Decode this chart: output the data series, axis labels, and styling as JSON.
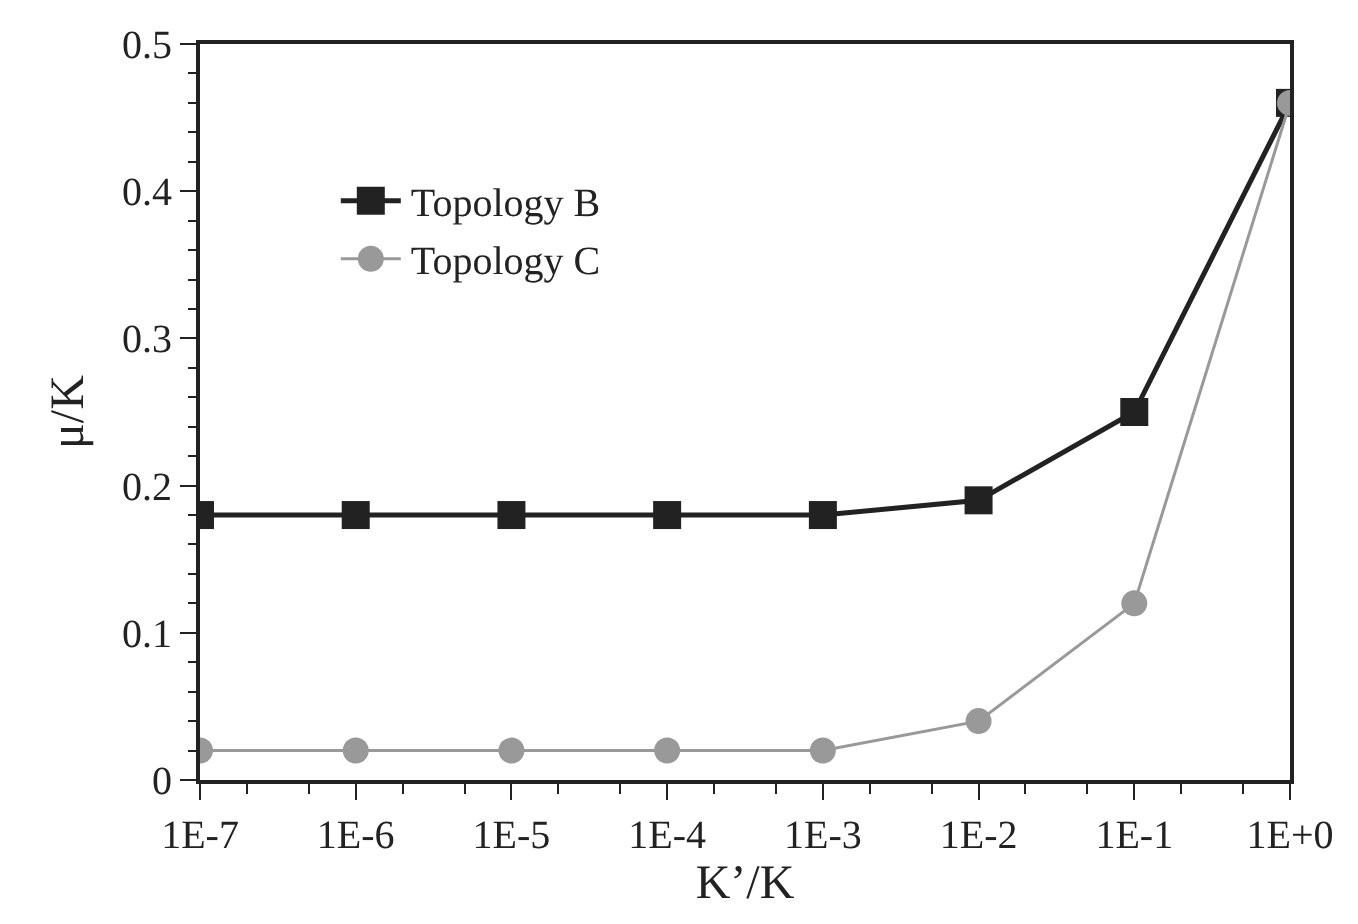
{
  "chart_data": {
    "type": "line",
    "xlabel": "K’/K",
    "ylabel": "μ/K",
    "log": "x",
    "x": [
      1e-07,
      1e-06,
      1e-05,
      0.0001,
      0.001,
      0.01,
      0.1,
      1
    ],
    "series": [
      {
        "name": "Topology B",
        "color": "#222222",
        "marker": "square",
        "values": [
          0.18,
          0.18,
          0.18,
          0.18,
          0.18,
          0.19,
          0.25,
          0.46
        ]
      },
      {
        "name": "Topology C",
        "color": "#999999",
        "marker": "circle",
        "values": [
          0.02,
          0.02,
          0.02,
          0.02,
          0.02,
          0.04,
          0.12,
          0.46
        ]
      }
    ],
    "xlim": [
      1e-07,
      1
    ],
    "xticks": [
      {
        "value": 1e-07,
        "label": "1E-7"
      },
      {
        "value": 1e-06,
        "label": "1E-6"
      },
      {
        "value": 1e-05,
        "label": "1E-5"
      },
      {
        "value": 0.0001,
        "label": "1E-4"
      },
      {
        "value": 0.001,
        "label": "1E-3"
      },
      {
        "value": 0.01,
        "label": "1E-2"
      },
      {
        "value": 0.1,
        "label": "1E-1"
      },
      {
        "value": 1,
        "label": "1E+0"
      }
    ],
    "ylim": [
      0,
      0.5
    ],
    "yticks": [
      0,
      0.1,
      0.2,
      0.3,
      0.4,
      0.5
    ],
    "legend": "top left",
    "line_style": "solid"
  }
}
